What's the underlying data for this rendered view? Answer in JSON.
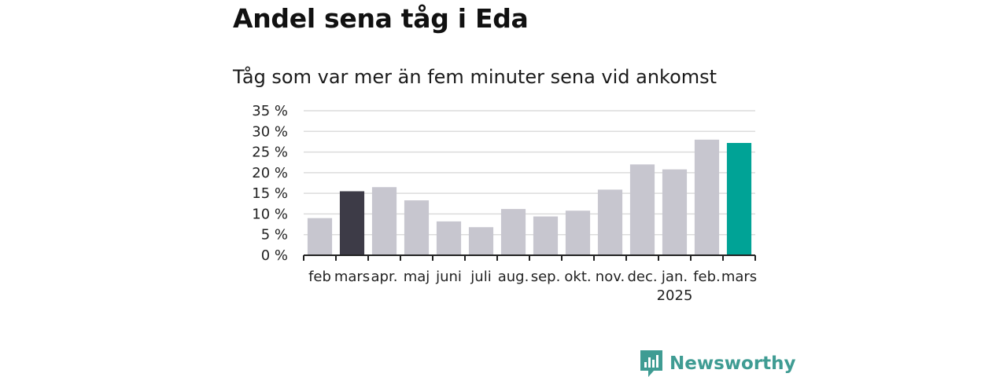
{
  "title": "Andel sena tåg i Eda",
  "subtitle": "Tåg som var mer än fem minuter sena vid ankomst",
  "brand": {
    "name": "Newsworthy",
    "icon": "newsworthy-logo-icon",
    "color": "#3f9c93"
  },
  "colors": {
    "bar": "#c7c6cf",
    "highlight_dark": "#3d3b47",
    "highlight_accent": "#00a396",
    "grid": "#dcdcdc",
    "axis": "#222222"
  },
  "chart_data": {
    "type": "bar",
    "title": "Andel sena tåg i Eda",
    "subtitle": "Tåg som var mer än fem minuter sena vid ankomst",
    "categories": [
      "feb.",
      "mars",
      "apr.",
      "maj",
      "juni",
      "juli",
      "aug.",
      "sep.",
      "okt.",
      "nov.",
      "dec.",
      "jan.",
      "feb.",
      "mars"
    ],
    "category_labels": [
      "feb",
      "mars",
      "apr.",
      "maj",
      "juni",
      "juli",
      "aug.",
      "sep.",
      "okt.",
      "nov.",
      "dec.",
      "jan.",
      "feb.",
      "mars"
    ],
    "year_label": {
      "index": 11,
      "text": "2025"
    },
    "values": [
      9.0,
      15.5,
      16.5,
      13.3,
      8.2,
      6.8,
      11.2,
      9.4,
      10.8,
      15.9,
      22.0,
      20.8,
      28.0,
      27.2
    ],
    "highlight": {
      "1": "highlight_dark",
      "13": "highlight_accent"
    },
    "xlabel": "",
    "ylabel": "",
    "ylim": [
      0,
      35
    ],
    "yticks": [
      0,
      5,
      10,
      15,
      20,
      25,
      30,
      35
    ],
    "ytick_labels": [
      "0 %",
      "5 %",
      "10 %",
      "15 %",
      "20 %",
      "25 %",
      "30 %",
      "35 %"
    ],
    "grid": true,
    "legend": "none"
  }
}
